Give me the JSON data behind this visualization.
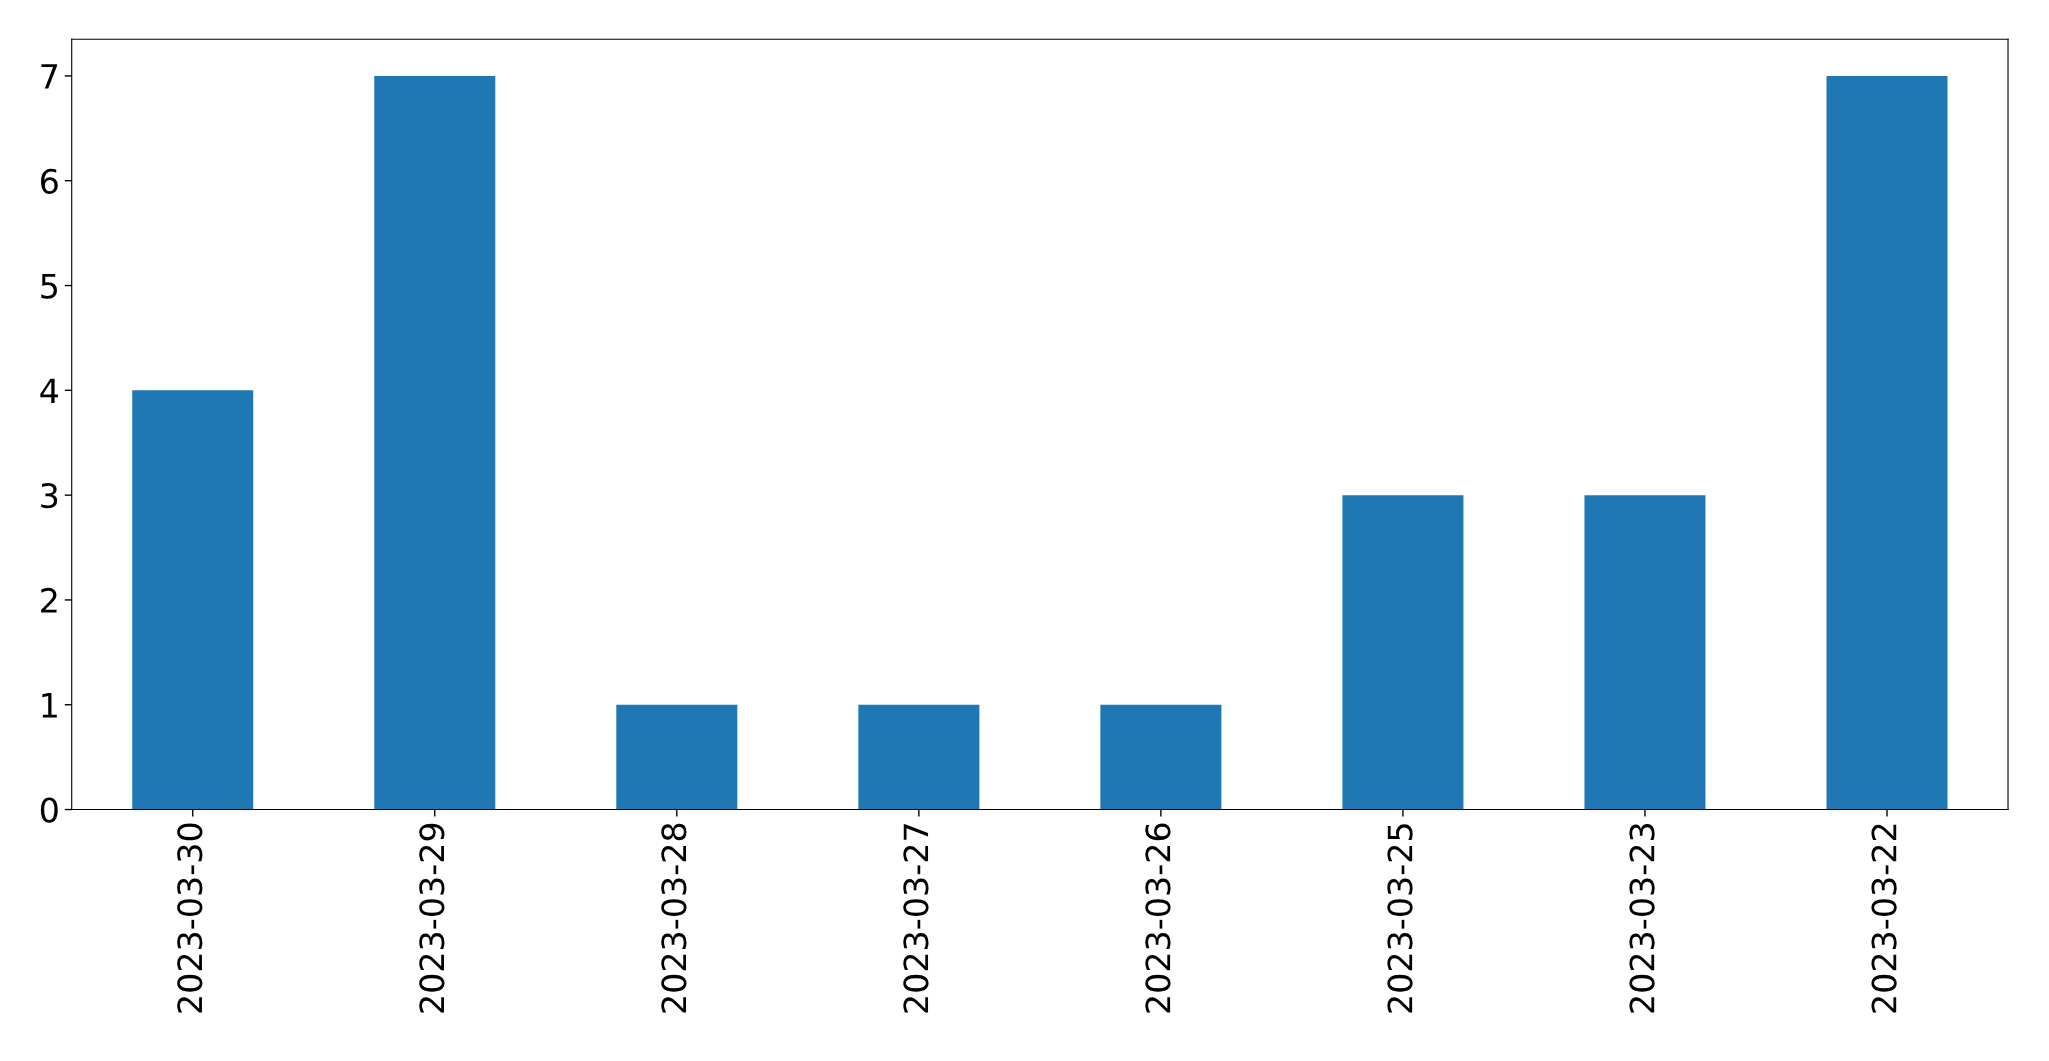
{
  "chart_data": {
    "type": "bar",
    "categories": [
      "2023-03-30",
      "2023-03-29",
      "2023-03-28",
      "2023-03-27",
      "2023-03-26",
      "2023-03-25",
      "2023-03-23",
      "2023-03-22"
    ],
    "values": [
      4,
      7,
      1,
      1,
      1,
      3,
      3,
      7
    ],
    "color": "#1f77b4",
    "ylim": [
      0,
      7.35
    ],
    "yticks": [
      0,
      1,
      2,
      3,
      4,
      5,
      6,
      7
    ]
  }
}
